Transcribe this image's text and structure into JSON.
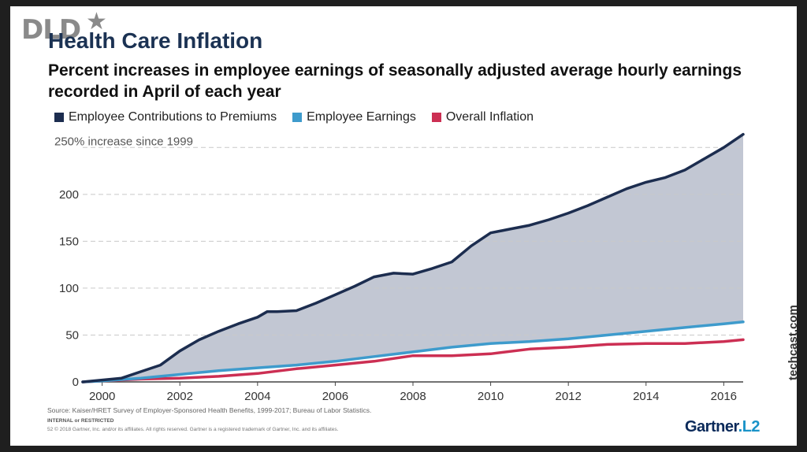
{
  "brand": {
    "logo_text": "DLD",
    "logo_star": "★"
  },
  "title": "Health Care Inflation",
  "subtitle": "Percent increases in employee earnings of seasonally adjusted average hourly earnings recorded in April of each year",
  "colors": {
    "premiums": "#1c2d4f",
    "earnings": "#3e9bcc",
    "inflation": "#cc2f53",
    "area": "#b7bdcb"
  },
  "chart_data": {
    "type": "area",
    "annotation": "250% increase since 1999",
    "x_ticks": [
      "2000",
      "2002",
      "2004",
      "2006",
      "2008",
      "2010",
      "2012",
      "2014",
      "2016"
    ],
    "y_ticks": [
      "0",
      "50",
      "100",
      "150",
      "200"
    ],
    "xlim": [
      1999.5,
      2016.5
    ],
    "ylim": [
      0,
      262
    ],
    "gridlines": [
      50,
      100,
      150,
      200,
      250
    ],
    "series": [
      {
        "name": "Employee Contributions to Premiums",
        "x": [
          1999.5,
          2000,
          2000.5,
          2001,
          2001.5,
          2002,
          2002.5,
          2003,
          2003.5,
          2004,
          2004.25,
          2004.5,
          2005,
          2005.5,
          2006,
          2006.5,
          2007,
          2007.5,
          2008,
          2008.5,
          2009,
          2009.5,
          2010,
          2010.5,
          2011,
          2011.5,
          2012,
          2012.5,
          2013,
          2013.5,
          2014,
          2014.5,
          2015,
          2015.5,
          2016,
          2016.5
        ],
        "values": [
          0,
          2,
          4,
          11,
          18,
          33,
          45,
          54,
          62,
          69,
          75,
          75,
          76,
          84,
          93,
          102,
          112,
          116,
          115,
          121,
          128,
          145,
          159,
          163,
          167,
          173,
          180,
          188,
          197,
          206,
          213,
          218,
          226,
          238,
          250,
          264
        ]
      },
      {
        "name": "Employee Earnings",
        "x": [
          1999.5,
          2000,
          2001,
          2002,
          2003,
          2004,
          2005,
          2006,
          2007,
          2008,
          2009,
          2010,
          2011,
          2012,
          2013,
          2014,
          2015,
          2016,
          2016.5
        ],
        "values": [
          0,
          1,
          4,
          8,
          12,
          15,
          18,
          22,
          27,
          32,
          37,
          41,
          43,
          46,
          50,
          54,
          58,
          62,
          64
        ]
      },
      {
        "name": "Overall Inflation",
        "x": [
          1999.5,
          2000,
          2001,
          2002,
          2003,
          2004,
          2005,
          2006,
          2007,
          2008,
          2009,
          2010,
          2011,
          2012,
          2013,
          2014,
          2015,
          2016,
          2016.5
        ],
        "values": [
          0,
          1,
          3,
          4,
          6,
          9,
          14,
          18,
          22,
          28,
          28,
          30,
          35,
          37,
          40,
          41,
          41,
          43,
          45
        ]
      }
    ]
  },
  "footer": {
    "source": "Source: Kaiser/HRET Survey of Employer-Sponsored Health Benefits, 1999-2017; Bureau of Labor Statistics.",
    "internal": "INTERNAL or RESTRICTED",
    "copyright": "52     © 2018 Gartner, Inc. and/or its affiliates. All rights reserved. Gartner is a registered trademark of Gartner, Inc. and its affiliates.",
    "gartner": "Gartner",
    "gartner_suffix": ".L2",
    "techcast": "techcast.com"
  }
}
